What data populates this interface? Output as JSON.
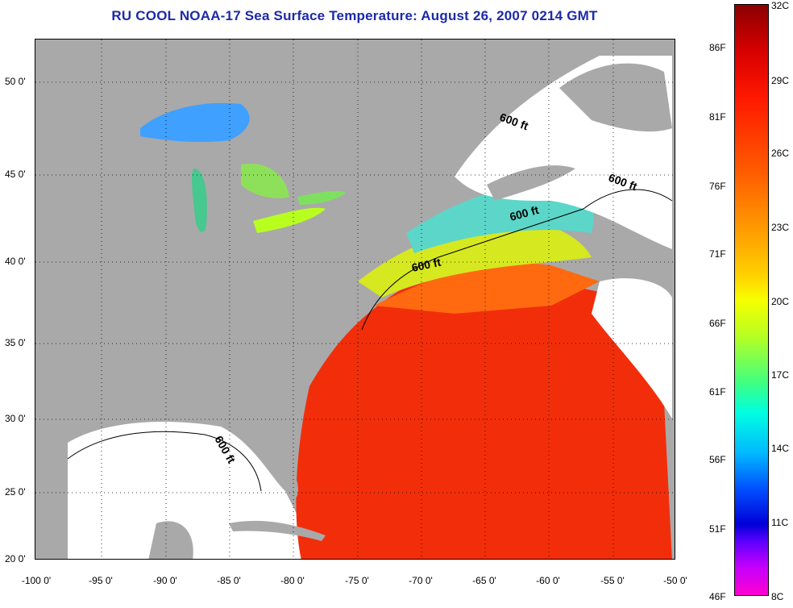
{
  "title": "RU COOL  NOAA-17  Sea Surface Temperature:  August 26, 2007 0214 GMT",
  "map": {
    "lon_labels": [
      "-100 0'",
      "-95 0'",
      "-90 0'",
      "-85 0'",
      "-80 0'",
      "-75 0'",
      "-70 0'",
      "-65 0'",
      "-60 0'",
      "-55 0'",
      "-50 0'"
    ],
    "lat_labels": [
      "50 0'",
      "45 0'",
      "40 0'",
      "35 0'",
      "30 0'",
      "25 0'",
      "20 0'"
    ],
    "contour_labels": [
      "600 ft",
      "600 ft",
      "600 ft",
      "600 ft",
      "600 ft"
    ],
    "colors": {
      "land": "#a9a9a9",
      "cloud": "#ffffff",
      "warm": "#ff2a00",
      "cool": "#3fa0ff"
    }
  },
  "colorbar": {
    "fahrenheit_labels": [
      "86F",
      "81F",
      "76F",
      "71F",
      "66F",
      "61F",
      "56F",
      "51F",
      "46F"
    ],
    "celsius_labels": [
      "32C",
      "29C",
      "26C",
      "23C",
      "20C",
      "17C",
      "14C",
      "11C",
      "8C"
    ]
  }
}
